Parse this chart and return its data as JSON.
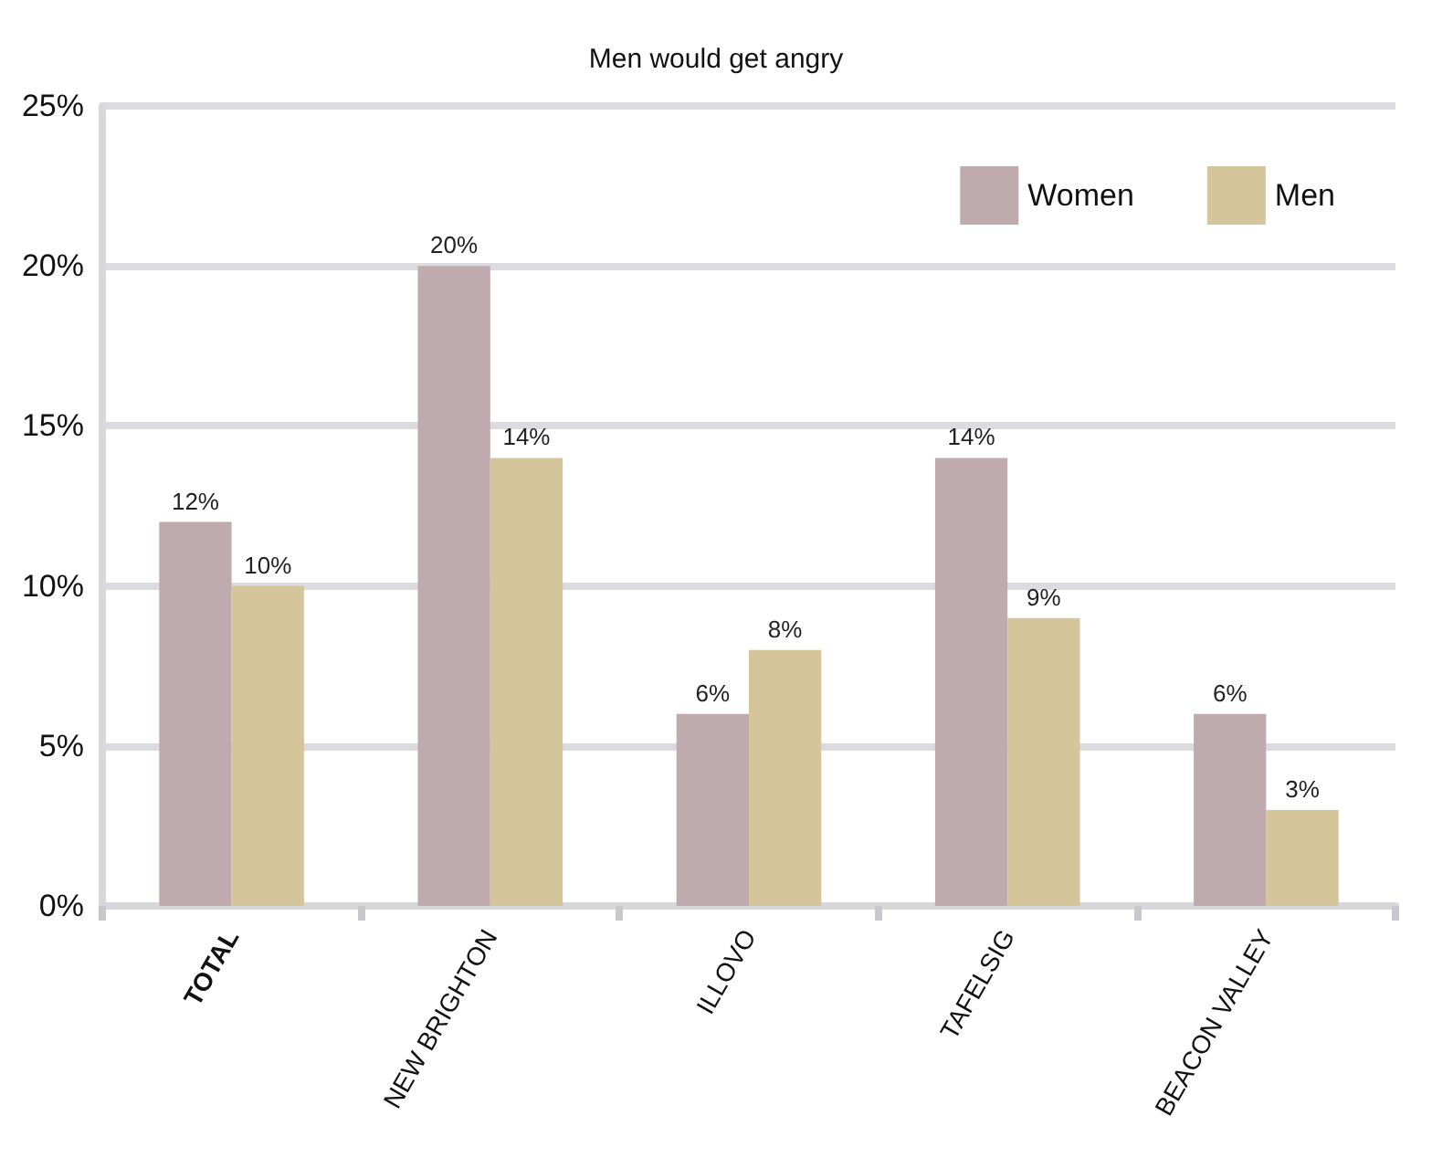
{
  "chart_data": {
    "type": "bar",
    "title": "Men would get angry",
    "categories": [
      "TOTAL",
      "NEW BRIGHTON",
      "ILLOVO",
      "TAFELSIG",
      "BEACON VALLEY"
    ],
    "series": [
      {
        "name": "Women",
        "color": "#bfaaad",
        "values": [
          12,
          20,
          6,
          14,
          6
        ],
        "value_labels": [
          "12%",
          "20%",
          "6%",
          "14%",
          "6%"
        ]
      },
      {
        "name": "Men",
        "color": "#d4c59a",
        "values": [
          10,
          14,
          8,
          9,
          3
        ],
        "value_labels": [
          "10%",
          "14%",
          "8%",
          "9%",
          "3%"
        ]
      }
    ],
    "ylim": [
      0,
      25
    ],
    "yticks": [
      {
        "value": 0,
        "label": "0%"
      },
      {
        "value": 5,
        "label": "5%"
      },
      {
        "value": 10,
        "label": "10%"
      },
      {
        "value": 15,
        "label": "15%"
      },
      {
        "value": 20,
        "label": "20%"
      },
      {
        "value": 25,
        "label": "25%"
      }
    ],
    "grid": "y",
    "legend": "top right"
  }
}
